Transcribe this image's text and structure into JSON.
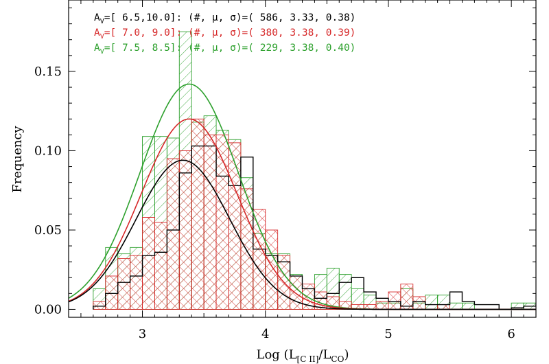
{
  "chart_data": {
    "type": "bar",
    "xlabel": "Log (L",
    "xlabel_sub1": "[C II]",
    "xlabel_mid": "/L",
    "xlabel_sub2": "CO",
    "xlabel_end": ")",
    "ylabel": "Frequency",
    "xlim": [
      2.4,
      6.2
    ],
    "ylim": [
      -0.005,
      0.195
    ],
    "xticks": [
      "3",
      "4",
      "5",
      "6"
    ],
    "yticks": [
      "0.00",
      "0.05",
      "0.10",
      "0.15"
    ],
    "bin_width": 0.1,
    "colors": {
      "black": "#000000",
      "red": "#d62728",
      "green": "#2ca02c"
    },
    "legend": [
      {
        "prefix": "A",
        "sub": "V",
        "text": "=[ 6.5,10.0]: (#, μ, σ)=( 586, 3.33, 0.38)",
        "color": "#000000"
      },
      {
        "prefix": "A",
        "sub": "V",
        "text": "=[ 7.0, 9.0]: (#, μ, σ)=( 380, 3.38, 0.39)",
        "color": "#d62728"
      },
      {
        "prefix": "A",
        "sub": "V",
        "text": "=[ 7.5, 8.5]: (#, μ, σ)=( 229, 3.38, 0.40)",
        "color": "#2ca02c"
      }
    ],
    "series": [
      {
        "name": "A_V=[ 6.5,10.0]",
        "color": "#000000",
        "style": "step",
        "x_start": 2.6,
        "values": [
          0.002,
          0.01,
          0.017,
          0.021,
          0.034,
          0.036,
          0.05,
          0.086,
          0.103,
          0.103,
          0.084,
          0.078,
          0.096,
          0.038,
          0.034,
          0.03,
          0.021,
          0.013,
          0.007,
          0.01,
          0.017,
          0.02,
          0.011,
          0.007,
          0.005,
          0.002,
          0.005,
          0.003,
          0.003,
          0.011,
          0.005,
          0.003,
          0.003,
          0.0,
          0.001,
          0.002,
          0.003,
          0.007,
          0.012,
          0.005,
          0.003,
          0.004,
          0.028
        ],
        "fit": {
          "mu": 3.33,
          "sigma": 0.38,
          "peak": 0.094
        }
      },
      {
        "name": "A_V=[ 7.0, 9.0]",
        "color": "#d62728",
        "style": "hatch",
        "x_start": 2.6,
        "values": [
          0.005,
          0.021,
          0.032,
          0.034,
          0.058,
          0.055,
          0.095,
          0.1,
          0.12,
          0.11,
          0.11,
          0.105,
          0.076,
          0.063,
          0.05,
          0.034,
          0.021,
          0.016,
          0.011,
          0.008,
          0.005,
          0.003,
          0.003,
          0.005,
          0.011,
          0.016,
          0.008,
          0.0,
          0.003,
          0.0,
          0.0,
          0.0,
          0.0,
          0.0,
          0.0,
          0.0,
          0.005,
          0.005,
          0.011,
          0.0,
          0.0,
          0.011,
          0.0,
          0.0,
          0.0
        ],
        "fit": {
          "mu": 3.38,
          "sigma": 0.39,
          "peak": 0.12
        }
      },
      {
        "name": "A_V=[ 7.5, 8.5]",
        "color": "#2ca02c",
        "style": "hatch",
        "x_start": 2.6,
        "values": [
          0.013,
          0.039,
          0.035,
          0.039,
          0.109,
          0.109,
          0.108,
          0.175,
          0.118,
          0.122,
          0.113,
          0.107,
          0.083,
          0.048,
          0.035,
          0.035,
          0.022,
          0.013,
          0.022,
          0.026,
          0.022,
          0.013,
          0.009,
          0.004,
          0.004,
          0.013,
          0.004,
          0.009,
          0.009,
          0.004,
          0.004,
          0.0,
          0.0,
          0.0,
          0.004,
          0.004,
          0.004,
          0.0,
          0.017,
          0.004,
          0.0,
          0.0,
          0.0
        ],
        "fit": {
          "mu": 3.38,
          "sigma": 0.4,
          "peak": 0.142
        }
      }
    ]
  }
}
